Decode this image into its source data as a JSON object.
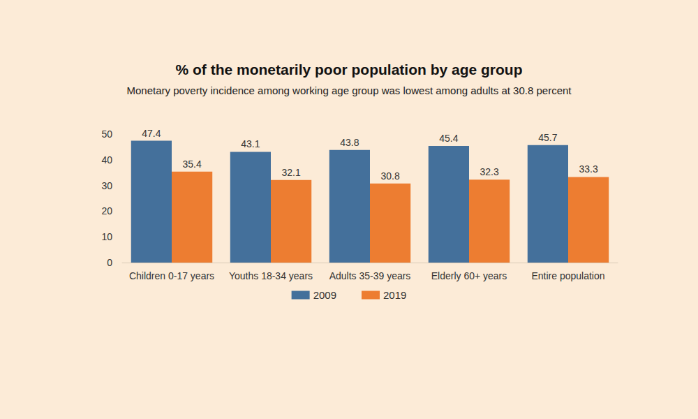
{
  "chart_data": {
    "type": "bar",
    "title": "% of the monetarily poor population by age group",
    "subtitle": "Monetary poverty incidence among working age group was lowest among adults at 30.8 percent",
    "categories": [
      "Children 0-17 years",
      "Youths 18-34 years",
      "Adults 35-39 years",
      "Elderly 60+ years",
      "Entire population"
    ],
    "series": [
      {
        "name": "2009",
        "color": "#44709b",
        "values": [
          47.4,
          43.1,
          43.8,
          45.4,
          45.7
        ]
      },
      {
        "name": "2019",
        "color": "#ed7d31",
        "values": [
          35.4,
          32.1,
          30.8,
          32.3,
          33.3
        ]
      }
    ],
    "ylim": [
      0,
      50
    ],
    "yticks": [
      0,
      10,
      20,
      30,
      40,
      50
    ],
    "grid": false,
    "legend": "bottom",
    "data_labels": true
  }
}
